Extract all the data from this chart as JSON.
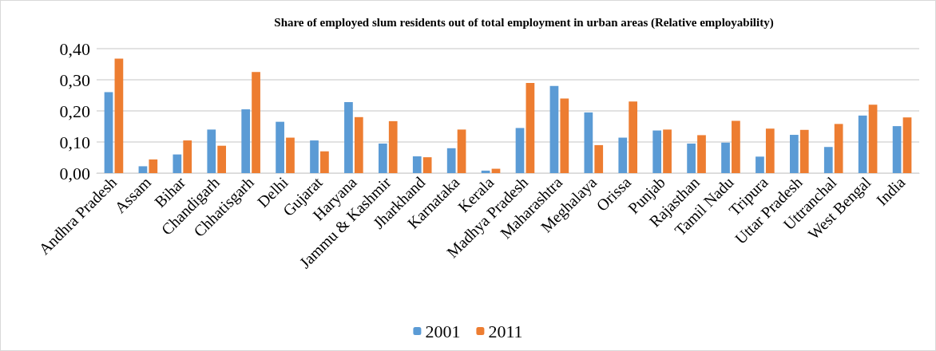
{
  "chart_data": {
    "type": "bar",
    "title": "Share of employed slum residents out of total employment in urban areas (Relative employability)",
    "categories": [
      "Andhra Pradesh",
      "Assam",
      "Bihar",
      "Chandigarh",
      "Chhatisgarh",
      "Delhi",
      "Gujarat",
      "Haryana",
      "Jammu & Kashmir",
      "Jharkhand",
      "Karnataka",
      "Kerala",
      "Madhya Pradesh",
      "Maharashtra",
      "Meghalaya",
      "Orissa",
      "Punjab",
      "Rajasthan",
      "Tamil Nadu",
      "Tripura",
      "Uttar Pradesh",
      "Uttranchal",
      "West Bengal",
      "India"
    ],
    "series": [
      {
        "name": "2001",
        "color": "#5b9bd5",
        "values": [
          0.26,
          0.022,
          0.06,
          0.14,
          0.205,
          0.165,
          0.105,
          0.228,
          0.095,
          0.054,
          0.08,
          0.008,
          0.145,
          0.28,
          0.195,
          0.114,
          0.137,
          0.095,
          0.098,
          0.053,
          0.123,
          0.084,
          0.185,
          0.151
        ]
      },
      {
        "name": "2011",
        "color": "#ed7d31",
        "values": [
          0.368,
          0.044,
          0.105,
          0.088,
          0.325,
          0.114,
          0.07,
          0.18,
          0.167,
          0.051,
          0.14,
          0.014,
          0.29,
          0.24,
          0.09,
          0.23,
          0.14,
          0.122,
          0.168,
          0.143,
          0.139,
          0.158,
          0.22,
          0.179
        ]
      }
    ],
    "ylim": [
      0,
      0.4
    ],
    "yticks": [
      {
        "value": 0,
        "label": "0,00"
      },
      {
        "value": 0.1,
        "label": "0,10"
      },
      {
        "value": 0.2,
        "label": "0,20"
      },
      {
        "value": 0.3,
        "label": "0,30"
      },
      {
        "value": 0.4,
        "label": "0,40"
      }
    ],
    "grid": "y",
    "legend": "bottom"
  }
}
